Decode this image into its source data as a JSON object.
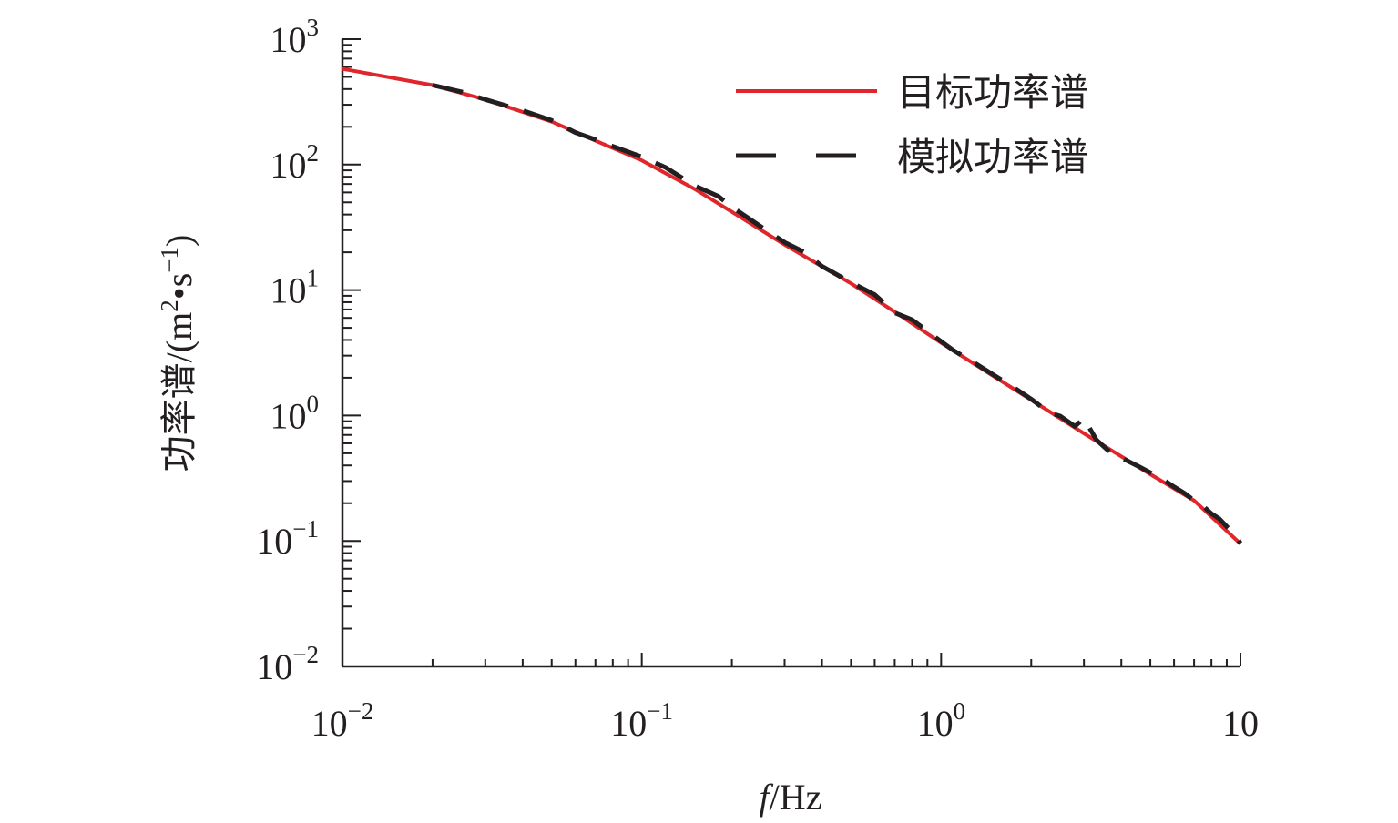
{
  "chart_data": {
    "type": "line",
    "title": "",
    "xlabel": {
      "italic": "f",
      "rest": "/Hz"
    },
    "ylabel": {
      "prefix": "功率谱/(m",
      "sup1": "2",
      "mid": "•s",
      "sup2": "−1",
      "suffix": ")"
    },
    "x_scale": "log",
    "y_scale": "log",
    "xlim": [
      0.01,
      10
    ],
    "ylim": [
      0.01,
      1000
    ],
    "x_ticks": [
      {
        "value": 0.01,
        "base": "10",
        "exp": "−2"
      },
      {
        "value": 0.1,
        "base": "10",
        "exp": "−1"
      },
      {
        "value": 1,
        "base": "10",
        "exp": "0"
      },
      {
        "value": 10,
        "base": "10",
        "exp": ""
      }
    ],
    "y_ticks": [
      {
        "value": 1000,
        "base": "10",
        "exp": "3"
      },
      {
        "value": 100,
        "base": "10",
        "exp": "2"
      },
      {
        "value": 10,
        "base": "10",
        "exp": "1"
      },
      {
        "value": 1,
        "base": "10",
        "exp": "0"
      },
      {
        "value": 0.1,
        "base": "10",
        "exp": "−1"
      },
      {
        "value": 0.01,
        "base": "10",
        "exp": "−2"
      }
    ],
    "grid": false,
    "legend_position": "top-right",
    "series": [
      {
        "name": "目标功率谱",
        "color": "#e0262b",
        "style": "solid",
        "x": [
          0.01,
          0.02,
          0.03,
          0.05,
          0.07,
          0.1,
          0.15,
          0.2,
          0.3,
          0.5,
          0.7,
          1,
          1.5,
          2,
          3,
          5,
          7,
          10
        ],
        "y": [
          580,
          430,
          330,
          220,
          155,
          108,
          64,
          42,
          23,
          11.3,
          6.7,
          3.8,
          2.05,
          1.33,
          0.72,
          0.34,
          0.21,
          0.095
        ]
      },
      {
        "name": "模拟功率谱",
        "color": "#231f20",
        "style": "dashed",
        "x": [
          0.02,
          0.025,
          0.03,
          0.04,
          0.05,
          0.06,
          0.07,
          0.08,
          0.1,
          0.12,
          0.15,
          0.18,
          0.2,
          0.25,
          0.3,
          0.35,
          0.4,
          0.5,
          0.6,
          0.7,
          0.8,
          1,
          1.1,
          1.3,
          1.5,
          1.8,
          2,
          2.3,
          2.5,
          2.8,
          3,
          3.3,
          3.6,
          4,
          4.5,
          5,
          5.5,
          6,
          6.5,
          7,
          7.5,
          8,
          8.5,
          9,
          9.5,
          10
        ],
        "y": [
          430,
          380,
          330,
          270,
          225,
          180,
          158,
          140,
          115,
          95,
          68,
          56,
          46,
          32,
          24,
          20,
          15.5,
          11.5,
          9.2,
          6.6,
          5.8,
          3.9,
          3.3,
          2.6,
          2.1,
          1.6,
          1.35,
          1.05,
          0.99,
          0.82,
          0.95,
          0.64,
          0.53,
          0.46,
          0.4,
          0.35,
          0.31,
          0.27,
          0.24,
          0.21,
          0.19,
          0.165,
          0.15,
          0.13,
          0.115,
          0.096
        ]
      }
    ]
  }
}
